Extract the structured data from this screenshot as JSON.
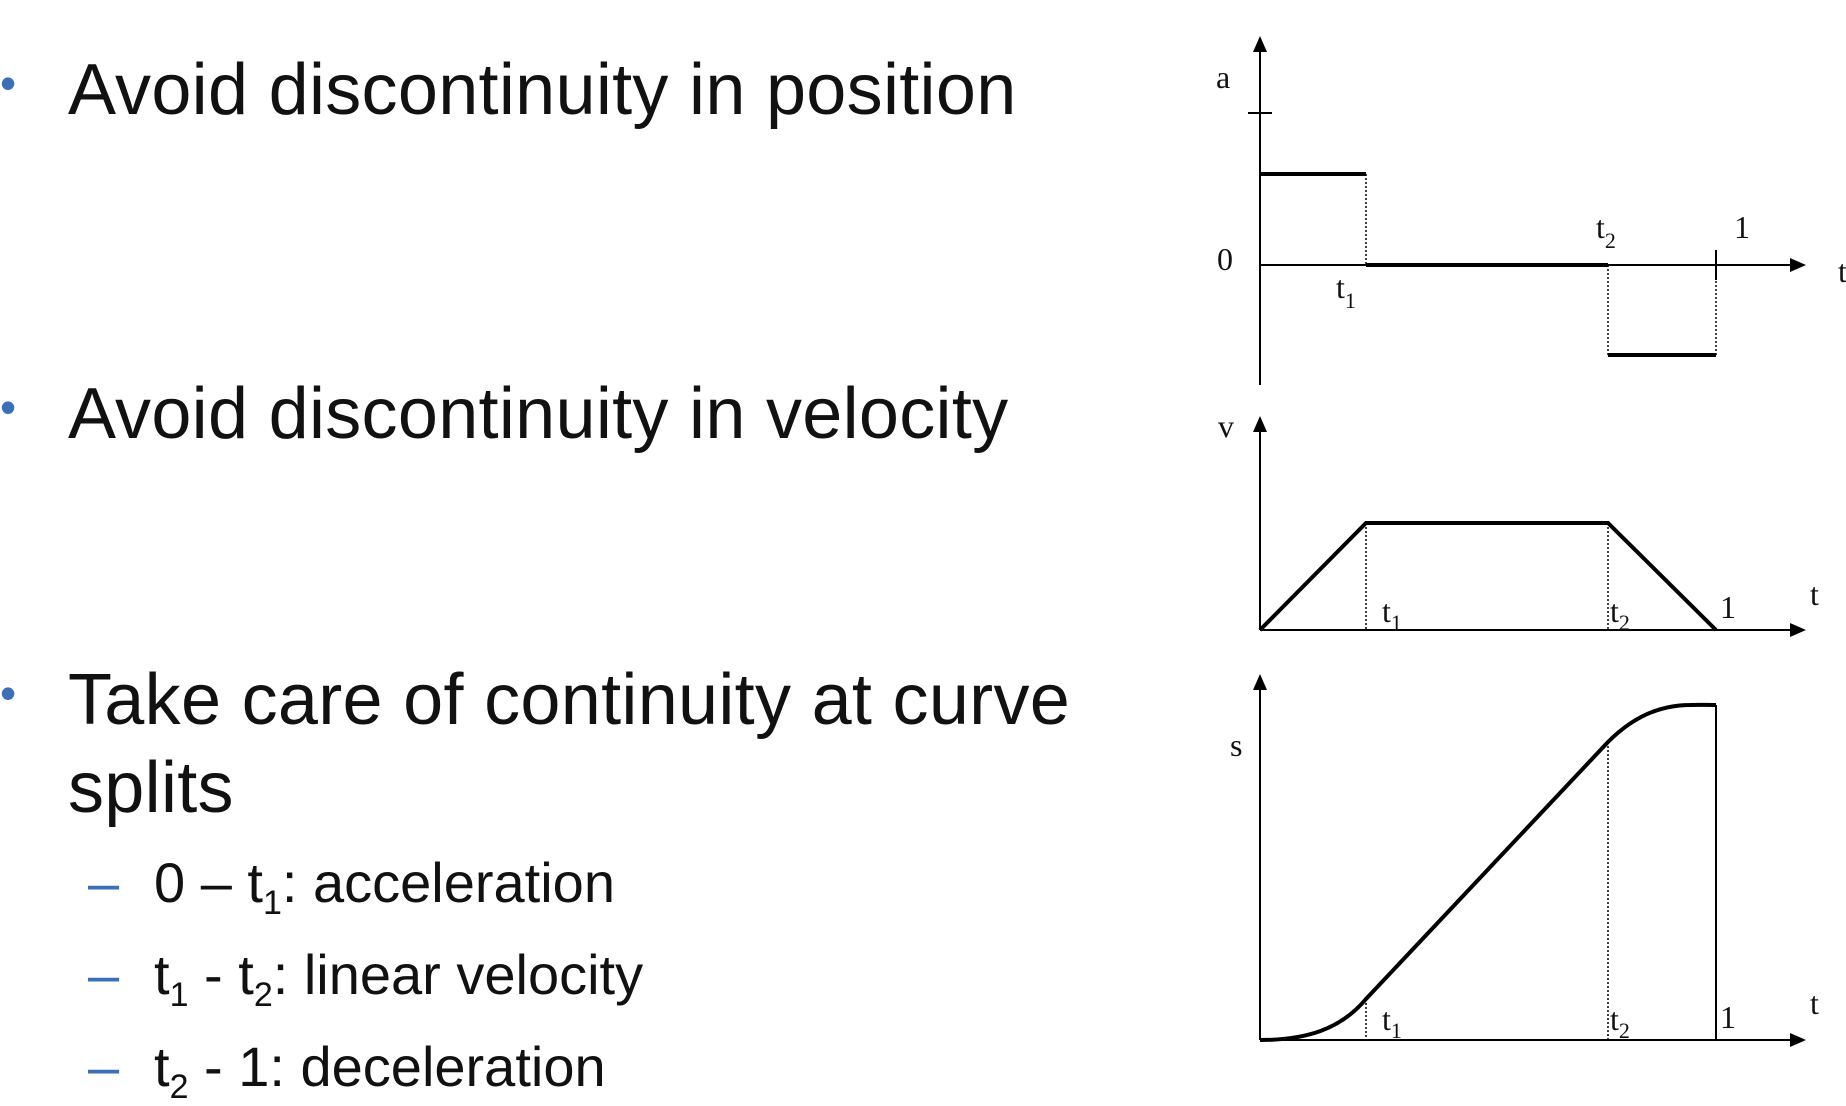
{
  "bullets": [
    {
      "text": "Avoid discontinuity in position"
    },
    {
      "text": "Avoid discontinuity in velocity"
    },
    {
      "text_line1": "Take care of continuity at curve",
      "text_line2": "splits"
    }
  ],
  "sub_bullets": [
    {
      "prefix": "0 – t",
      "sub1": "1",
      "suffix": ": acceleration"
    },
    {
      "prefix": "t",
      "sub1": "1",
      "mid": " - t",
      "sub2": "2",
      "suffix": ": linear velocity"
    },
    {
      "prefix": "t",
      "sub1": "2",
      "suffix": " - 1: deceleration"
    }
  ],
  "marker_symbols": {
    "bullet": "•",
    "dash": "–"
  },
  "colors": {
    "accent": "#3b6fb6",
    "text": "#111111",
    "line": "#000000"
  },
  "diagram": {
    "accel_plot": {
      "y_label": "a",
      "zero_label": "0",
      "x_label": "t",
      "t1": "t",
      "t1_sub": "1",
      "t2": "t",
      "t2_sub": "2",
      "one": "1"
    },
    "velocity_plot": {
      "y_label": "v",
      "x_label": "t",
      "t1": "t",
      "t1_sub": "1",
      "t2": "t",
      "t2_sub": "2",
      "one": "1"
    },
    "position_plot": {
      "y_label": "s",
      "x_label": "t",
      "t1": "t",
      "t1_sub": "1",
      "t2": "t",
      "t2_sub": "2",
      "one": "1"
    }
  }
}
